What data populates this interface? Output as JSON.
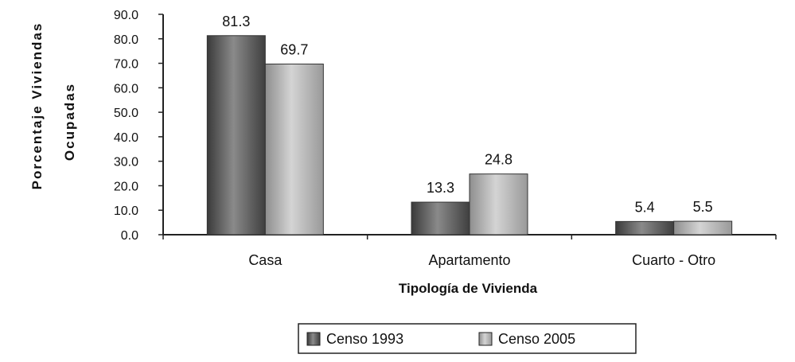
{
  "chart_data": {
    "type": "bar",
    "categories": [
      "Casa",
      "Apartamento",
      "Cuarto - Otro"
    ],
    "series": [
      {
        "name": "Censo 1993",
        "values": [
          81.3,
          13.3,
          5.4
        ],
        "value_labels": [
          "81.3",
          "13.3",
          "5.4"
        ],
        "color": "#555555"
      },
      {
        "name": "Censo 2005",
        "values": [
          69.7,
          24.8,
          5.5
        ],
        "value_labels": [
          "69.7",
          "24.8",
          "5.5"
        ],
        "color": "#aaaaaa"
      }
    ],
    "xlabel": "Tipología de Vivienda",
    "ylabel_lines": [
      "Porcentaje Viviendas",
      "Ocupadas"
    ],
    "ylim": [
      0,
      90
    ],
    "yticks": [
      "0.0",
      "10.0",
      "20.0",
      "30.0",
      "40.0",
      "50.0",
      "60.0",
      "70.0",
      "80.0",
      "90.0"
    ],
    "grid": false,
    "legend_position": "bottom"
  }
}
